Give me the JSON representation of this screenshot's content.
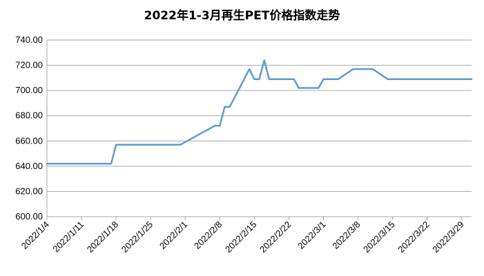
{
  "chart_data": {
    "type": "line",
    "title": "2022年1-3月再生PET价格指数走势",
    "xlabel": "",
    "ylabel": "",
    "ylim": [
      600,
      740
    ],
    "yticks": [
      "600.00",
      "620.00",
      "640.00",
      "660.00",
      "680.00",
      "700.00",
      "720.00",
      "740.00"
    ],
    "xticks": [
      "2022/1/4",
      "2022/1/11",
      "2022/1/18",
      "2022/1/25",
      "2022/2/1",
      "2022/2/8",
      "2022/2/15",
      "2022/2/22",
      "2022/3/1",
      "2022/3/8",
      "2022/3/15",
      "2022/3/22",
      "2022/3/29"
    ],
    "grid": "horizontal",
    "legend": "none",
    "line_color": "#5b9bd5",
    "series": [
      {
        "points": [
          [
            "2022/1/4",
            642
          ],
          [
            "2022/1/17",
            642
          ],
          [
            "2022/1/18",
            657
          ],
          [
            "2022/1/31",
            657
          ],
          [
            "2022/2/7",
            672
          ],
          [
            "2022/2/8",
            672
          ],
          [
            "2022/2/9",
            687
          ],
          [
            "2022/2/10",
            687
          ],
          [
            "2022/2/14",
            717
          ],
          [
            "2022/2/15",
            709
          ],
          [
            "2022/2/16",
            709
          ],
          [
            "2022/2/17",
            724
          ],
          [
            "2022/2/18",
            709
          ],
          [
            "2022/2/23",
            709
          ],
          [
            "2022/2/24",
            702
          ],
          [
            "2022/2/28",
            702
          ],
          [
            "2022/3/1",
            709
          ],
          [
            "2022/3/4",
            709
          ],
          [
            "2022/3/7",
            717
          ],
          [
            "2022/3/11",
            717
          ],
          [
            "2022/3/14",
            709
          ],
          [
            "2022/3/31",
            709
          ]
        ]
      }
    ]
  }
}
